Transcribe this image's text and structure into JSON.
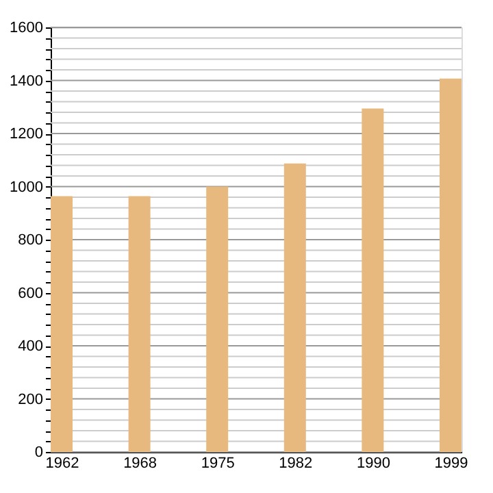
{
  "chart_data": {
    "type": "bar",
    "categories": [
      "1962",
      "1968",
      "1975",
      "1982",
      "1990",
      "1999"
    ],
    "values": [
      964,
      964,
      1000,
      1087,
      1294,
      1407
    ],
    "color": "#e8b97f",
    "ylim": [
      0,
      1600
    ],
    "yticks": [
      0,
      {
        "value": 40,
        "label": null
      },
      {
        "value": 80,
        "label": null
      },
      {
        "value": 120,
        "label": null
      },
      {
        "value": 160,
        "label": null
      },
      200,
      {
        "value": 240,
        "label": null
      },
      {
        "value": 280,
        "label": null
      },
      {
        "value": 320,
        "label": null
      },
      {
        "value": 360,
        "label": null
      },
      400,
      {
        "value": 440,
        "label": null
      },
      {
        "value": 480,
        "label": null
      },
      {
        "value": 520,
        "label": null
      },
      {
        "value": 560,
        "label": null
      },
      600,
      {
        "value": 640,
        "label": null
      },
      {
        "value": 680,
        "label": null
      },
      {
        "value": 720,
        "label": null
      },
      {
        "value": 760,
        "label": null
      },
      800,
      {
        "value": 840,
        "label": null
      },
      {
        "value": 880,
        "label": null
      },
      {
        "value": 920,
        "label": null
      },
      {
        "value": 960,
        "label": null
      },
      1000,
      {
        "value": 1040,
        "label": null
      },
      {
        "value": 1080,
        "label": null
      },
      {
        "value": 1120,
        "label": null
      },
      {
        "value": 1160,
        "label": null
      },
      1200,
      {
        "value": 1240,
        "label": null
      },
      {
        "value": 1280,
        "label": null
      },
      {
        "value": 1320,
        "label": null
      },
      {
        "value": 1360,
        "label": null
      },
      1400,
      {
        "value": 1440,
        "label": null
      },
      {
        "value": 1480,
        "label": null
      },
      {
        "value": 1520,
        "label": null
      },
      {
        "value": 1560,
        "label": null
      },
      1600
    ],
    "grid": "y"
  }
}
